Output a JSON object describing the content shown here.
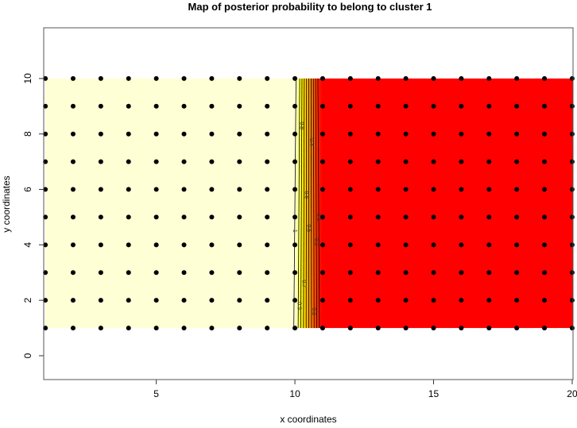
{
  "chart_data": {
    "type": "heatmap",
    "title": "Map of posterior probability to belong to cluster  1",
    "xlabel": "x coordinates",
    "ylabel": "y coordinates",
    "xlim": [
      0.94,
      20.03
    ],
    "ylim": [
      -0.86,
      11.83
    ],
    "x_ticks": [
      5,
      10,
      15,
      20
    ],
    "y_ticks": [
      0,
      2,
      4,
      6,
      8,
      10
    ],
    "grid_points": {
      "x": [
        1,
        2,
        3,
        4,
        5,
        6,
        7,
        8,
        9,
        10,
        11,
        12,
        13,
        14,
        15,
        16,
        17,
        18,
        19,
        20
      ],
      "y": [
        1,
        2,
        3,
        4,
        5,
        6,
        7,
        8,
        9,
        10
      ]
    },
    "probability_profile": {
      "x": [
        1,
        10,
        10.1,
        10.9,
        11,
        20
      ],
      "p": [
        1,
        1,
        0.95,
        0.05,
        0,
        0
      ]
    },
    "contour_levels": [
      0.1,
      0.2,
      0.3,
      0.4,
      0.5,
      0.6,
      0.7,
      0.8,
      0.9,
      1
    ],
    "contour_labels": [
      {
        "level": "1",
        "y": 4.5
      },
      {
        "level": "0.9",
        "y": 1.8
      },
      {
        "level": "0.8",
        "y": 8.3
      },
      {
        "level": "0.7",
        "y": 2.6
      },
      {
        "level": "0.6",
        "y": 5.8
      },
      {
        "level": "0.5",
        "y": 4.6
      },
      {
        "level": "0.4",
        "y": 7.7
      },
      {
        "level": "0.3",
        "y": 1.6
      },
      {
        "level": "0.2",
        "y": 4.1
      },
      {
        "level": "0.1",
        "y": 5.0
      }
    ],
    "colors": {
      "high": "#FFFFD5",
      "mid": "#FFFF00",
      "low": "#FF0000",
      "points": "#000000",
      "contour": "#000000"
    }
  }
}
